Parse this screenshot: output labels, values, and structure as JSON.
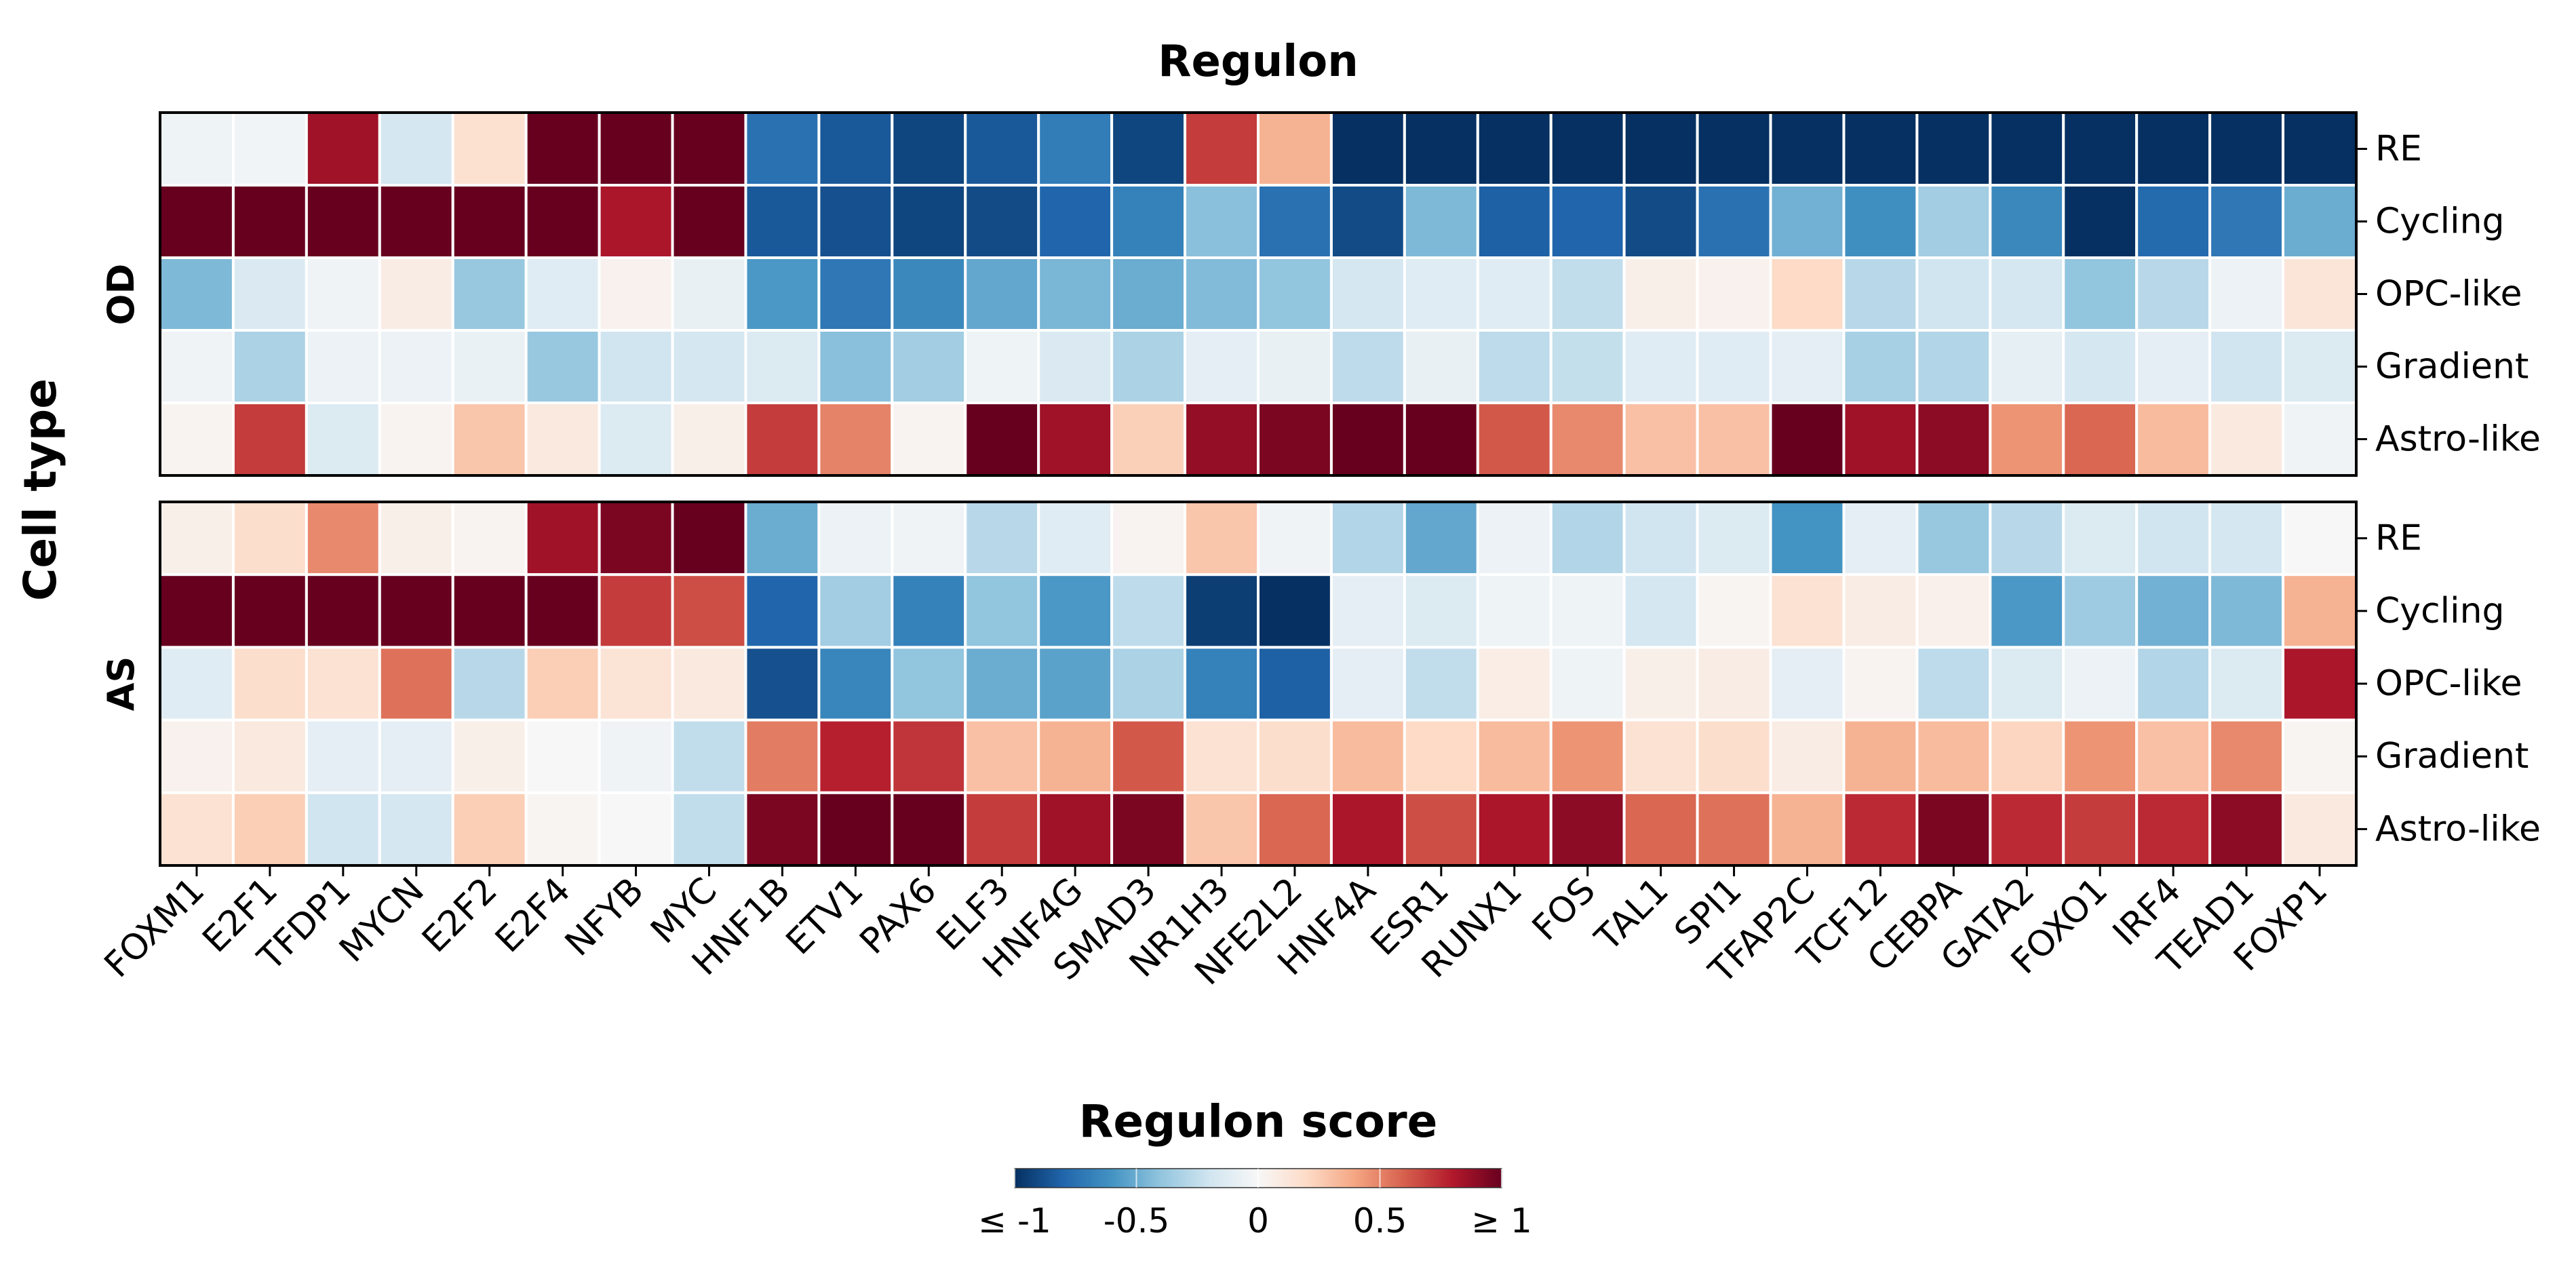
{
  "chart_data": {
    "type": "heatmap",
    "title": "Regulon",
    "ylabel": "Cell type",
    "regulons": [
      "FOXM1",
      "E2F1",
      "TFDP1",
      "MYCN",
      "E2F2",
      "E2F4",
      "NFYB",
      "MYC",
      "HNF1B",
      "ETV1",
      "PAX6",
      "ELF3",
      "HNF4G",
      "SMAD3",
      "NR1H3",
      "NFE2L2",
      "HNF4A",
      "ESR1",
      "RUNX1",
      "FOS",
      "TAL1",
      "SPI1",
      "TFAP2C",
      "TCF12",
      "CEBPA",
      "GATA2",
      "FOXO1",
      "IRF4",
      "TEAD1",
      "FOXP1"
    ],
    "cell_types": [
      "RE",
      "Cycling",
      "OPC-like",
      "Gradient",
      "Astro-like"
    ],
    "panels": [
      {
        "name": "OD",
        "values": [
          [
            -0.05,
            -0.03,
            0.85,
            -0.18,
            0.16,
            1.0,
            1.0,
            1.0,
            -0.75,
            -0.85,
            -0.92,
            -0.85,
            -0.7,
            -0.92,
            0.7,
            0.35,
            -1.2,
            -1.2,
            -1.2,
            -1.2,
            -1.2,
            -1.2,
            -1.2,
            -1.2,
            -1.1,
            -1.2,
            -1.2,
            -1.1,
            -1.2,
            -1.2
          ],
          [
            1.05,
            1.05,
            1.05,
            1.05,
            1.05,
            1.0,
            0.82,
            1.05,
            -0.85,
            -0.88,
            -0.92,
            -0.9,
            -0.8,
            -0.68,
            -0.42,
            -0.75,
            -0.9,
            -0.45,
            -0.82,
            -0.8,
            -0.9,
            -0.75,
            -0.48,
            -0.62,
            -0.35,
            -0.65,
            -1.2,
            -0.78,
            -0.72,
            -0.5
          ],
          [
            -0.45,
            -0.15,
            -0.04,
            0.08,
            -0.38,
            -0.12,
            0.04,
            -0.08,
            -0.58,
            -0.72,
            -0.65,
            -0.52,
            -0.46,
            -0.5,
            -0.44,
            -0.4,
            -0.18,
            -0.12,
            -0.12,
            -0.25,
            0.06,
            0.04,
            0.2,
            -0.28,
            -0.2,
            -0.18,
            -0.4,
            -0.28,
            -0.06,
            0.13
          ],
          [
            -0.04,
            -0.32,
            -0.06,
            -0.06,
            -0.07,
            -0.38,
            -0.2,
            -0.18,
            -0.14,
            -0.42,
            -0.35,
            -0.05,
            -0.15,
            -0.32,
            -0.1,
            -0.08,
            -0.26,
            -0.08,
            -0.26,
            -0.24,
            -0.12,
            -0.12,
            -0.1,
            -0.33,
            -0.3,
            -0.09,
            -0.18,
            -0.1,
            -0.2,
            -0.14
          ],
          [
            0.03,
            0.7,
            -0.14,
            0.03,
            0.28,
            0.1,
            -0.14,
            0.06,
            0.7,
            0.5,
            0.03,
            1.0,
            0.85,
            0.24,
            0.88,
            0.95,
            1.0,
            1.0,
            0.62,
            0.48,
            0.3,
            0.3,
            1.2,
            0.85,
            0.9,
            0.45,
            0.58,
            0.32,
            0.1,
            -0.04
          ]
        ]
      },
      {
        "name": "AS",
        "values": [
          [
            0.06,
            0.18,
            0.48,
            0.06,
            0.03,
            0.85,
            0.95,
            1.1,
            -0.5,
            -0.06,
            -0.04,
            -0.28,
            -0.12,
            0.03,
            0.28,
            -0.04,
            -0.3,
            -0.52,
            -0.06,
            -0.3,
            -0.2,
            -0.14,
            -0.6,
            -0.1,
            -0.38,
            -0.28,
            -0.14,
            -0.2,
            -0.18,
            0.0
          ],
          [
            1.05,
            1.05,
            1.05,
            1.05,
            1.05,
            1.05,
            0.7,
            0.65,
            -0.8,
            -0.35,
            -0.68,
            -0.4,
            -0.58,
            -0.26,
            -0.95,
            -1.2,
            -0.1,
            -0.14,
            -0.05,
            -0.05,
            -0.18,
            0.02,
            0.15,
            0.08,
            0.05,
            -0.58,
            -0.36,
            -0.48,
            -0.45,
            0.35
          ],
          [
            -0.12,
            0.18,
            0.15,
            0.55,
            -0.28,
            0.25,
            0.14,
            0.1,
            -0.88,
            -0.66,
            -0.4,
            -0.5,
            -0.54,
            -0.32,
            -0.68,
            -0.82,
            -0.1,
            -0.25,
            0.07,
            -0.05,
            0.06,
            0.08,
            -0.1,
            0.03,
            -0.26,
            -0.14,
            -0.06,
            -0.3,
            -0.14,
            0.82
          ],
          [
            0.04,
            0.1,
            -0.1,
            -0.1,
            0.06,
            0.0,
            -0.04,
            -0.25,
            0.52,
            0.78,
            0.72,
            0.3,
            0.35,
            0.62,
            0.15,
            0.18,
            0.32,
            0.2,
            0.32,
            0.45,
            0.15,
            0.18,
            0.08,
            0.35,
            0.32,
            0.22,
            0.45,
            0.3,
            0.48,
            0.02
          ],
          [
            0.15,
            0.25,
            -0.2,
            -0.18,
            0.25,
            0.02,
            0.0,
            -0.25,
            0.95,
            1.1,
            1.15,
            0.7,
            0.85,
            0.95,
            0.28,
            0.58,
            0.82,
            0.65,
            0.82,
            0.9,
            0.58,
            0.55,
            0.35,
            0.75,
            0.95,
            0.75,
            0.7,
            0.75,
            0.9,
            0.1
          ]
        ]
      }
    ],
    "colorbar": {
      "title": "Regulon score",
      "vmin": -1,
      "vmax": 1,
      "tick_values": [
        -1,
        -0.5,
        0,
        0.5,
        1
      ],
      "tick_labels": [
        "≤ -1",
        "-0.5",
        "0",
        "0.5",
        "≥ 1"
      ],
      "colormap": [
        "#053061",
        "#2166ac",
        "#4393c3",
        "#92c5de",
        "#d1e5f0",
        "#f7f7f7",
        "#fddbc7",
        "#f4a582",
        "#d6604d",
        "#b2182b",
        "#67001f"
      ]
    }
  }
}
